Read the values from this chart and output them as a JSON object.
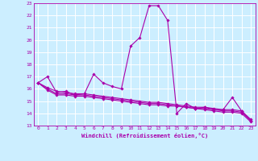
{
  "title": "",
  "xlabel": "Windchill (Refroidissement éolien,°C)",
  "background_color": "#cceeff",
  "grid_color": "#aaddee",
  "line_color": "#aa00aa",
  "marker_color": "#aa00aa",
  "xlim": [
    -0.5,
    23.5
  ],
  "ylim": [
    13,
    23
  ],
  "xticks": [
    0,
    1,
    2,
    3,
    4,
    5,
    6,
    7,
    8,
    9,
    10,
    11,
    12,
    13,
    14,
    15,
    16,
    17,
    18,
    19,
    20,
    21,
    22,
    23
  ],
  "yticks": [
    13,
    14,
    15,
    16,
    17,
    18,
    19,
    20,
    21,
    22,
    23
  ],
  "series1": [
    16.5,
    17.0,
    15.7,
    15.8,
    15.5,
    15.6,
    17.2,
    16.5,
    16.2,
    16.0,
    19.5,
    20.2,
    22.8,
    22.8,
    21.6,
    14.0,
    14.8,
    14.4,
    14.5,
    14.3,
    14.3,
    15.3,
    14.2,
    13.5
  ],
  "series2": [
    16.5,
    16.1,
    15.8,
    15.7,
    15.6,
    15.6,
    15.5,
    15.4,
    15.3,
    15.2,
    15.1,
    15.0,
    14.9,
    14.9,
    14.8,
    14.7,
    14.6,
    14.5,
    14.5,
    14.4,
    14.3,
    14.3,
    14.2,
    13.4
  ],
  "series3": [
    16.5,
    16.0,
    15.6,
    15.6,
    15.5,
    15.5,
    15.4,
    15.3,
    15.2,
    15.1,
    15.0,
    14.9,
    14.8,
    14.8,
    14.7,
    14.6,
    14.5,
    14.4,
    14.4,
    14.3,
    14.2,
    14.2,
    14.1,
    13.4
  ],
  "series4": [
    16.5,
    15.9,
    15.5,
    15.5,
    15.4,
    15.4,
    15.3,
    15.2,
    15.1,
    15.0,
    14.9,
    14.8,
    14.7,
    14.7,
    14.6,
    14.6,
    14.5,
    14.4,
    14.3,
    14.2,
    14.1,
    14.1,
    14.0,
    13.3
  ],
  "tick_fontsize": 4.5,
  "xlabel_fontsize": 5.0,
  "linewidth": 0.8,
  "markersize": 1.8
}
